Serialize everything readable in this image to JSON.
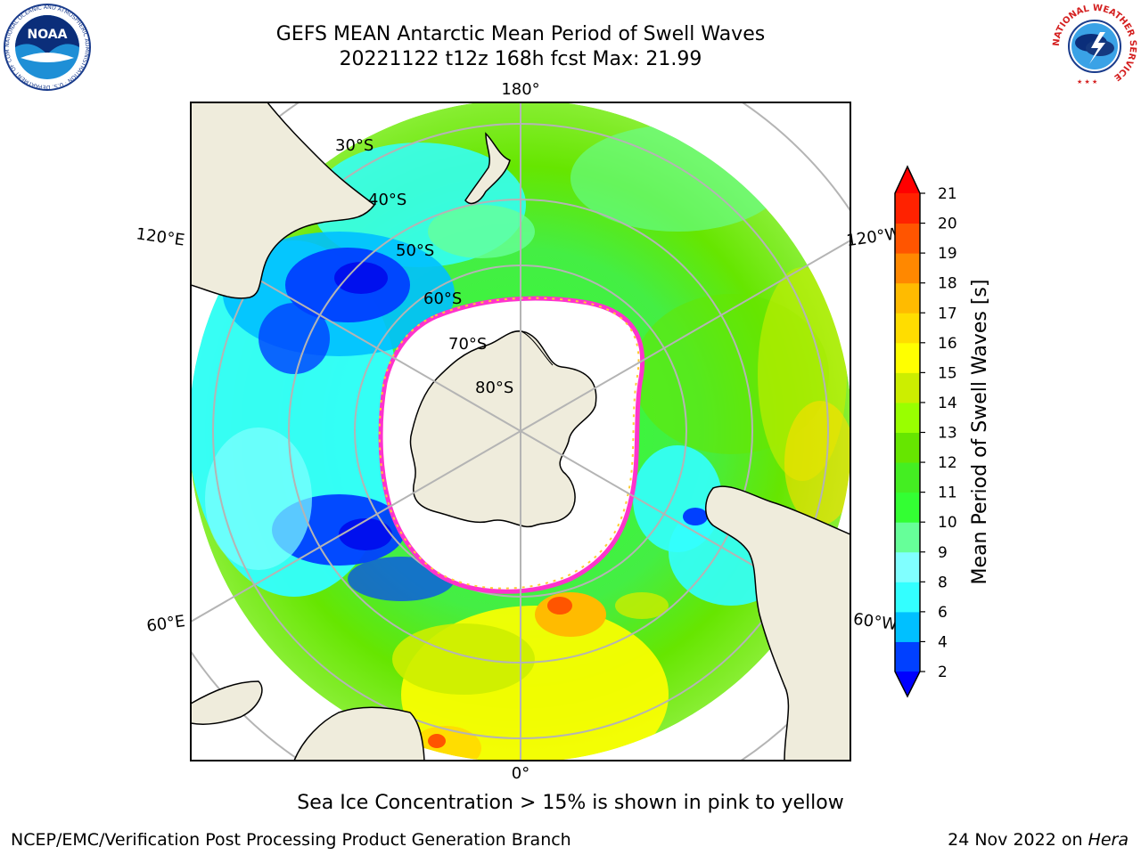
{
  "title": {
    "line1": "GEFS MEAN Antarctic Mean Period of Swell Waves",
    "line2": "20221122 t12z 168h fcst   Max: 21.99"
  },
  "map": {
    "projection": "south-polar-stereographic",
    "longitude_labels": {
      "top": "180°",
      "bottom": "0°",
      "upper_left": "120°E",
      "upper_right": "120°W",
      "lower_left": "60°E",
      "lower_right": "60°W"
    },
    "latitude_labels": [
      "30°S",
      "40°S",
      "50°S",
      "60°S",
      "70°S",
      "80°S"
    ],
    "colors": {
      "land": "#efecdc",
      "sea_ice_core": "#ffffff",
      "sea_ice_edge": [
        "#ff33cc",
        "#ff99dd",
        "#ffcc33"
      ],
      "graticule": "#b4b4b4"
    }
  },
  "colorbar": {
    "label": "Mean Period of Swell Waves [s]",
    "ticks": [
      "2",
      "4",
      "6",
      "8",
      "9",
      "10",
      "11",
      "12",
      "13",
      "14",
      "15",
      "16",
      "17",
      "18",
      "19",
      "20",
      "21"
    ],
    "colors": [
      "#0040ff",
      "#00c0ff",
      "#33ffff",
      "#80ffff",
      "#66ff99",
      "#33ff33",
      "#44ee22",
      "#66e600",
      "#99ff00",
      "#ccee00",
      "#ffff00",
      "#ffdd00",
      "#ffbb00",
      "#ff8800",
      "#ff5500",
      "#ff2200"
    ],
    "under_color": "#0000ff",
    "over_color": "#ff0000"
  },
  "note": "Sea Ice Concentration > 15% is shown in pink to yellow",
  "footer": {
    "left": "NCEP/EMC/Verification Post Processing Product Generation Branch",
    "right_prefix": "24 Nov 2022 on ",
    "right_machine": "Hera"
  },
  "logos": {
    "noaa_text": "NOAA",
    "noaa_ring_text": "NATIONAL OCEANIC AND ATMOSPHERIC ADMINISTRATION · U.S. DEPARTMENT OF COMMERCE",
    "nws_ring_text": "NATIONAL WEATHER SERVICE"
  }
}
